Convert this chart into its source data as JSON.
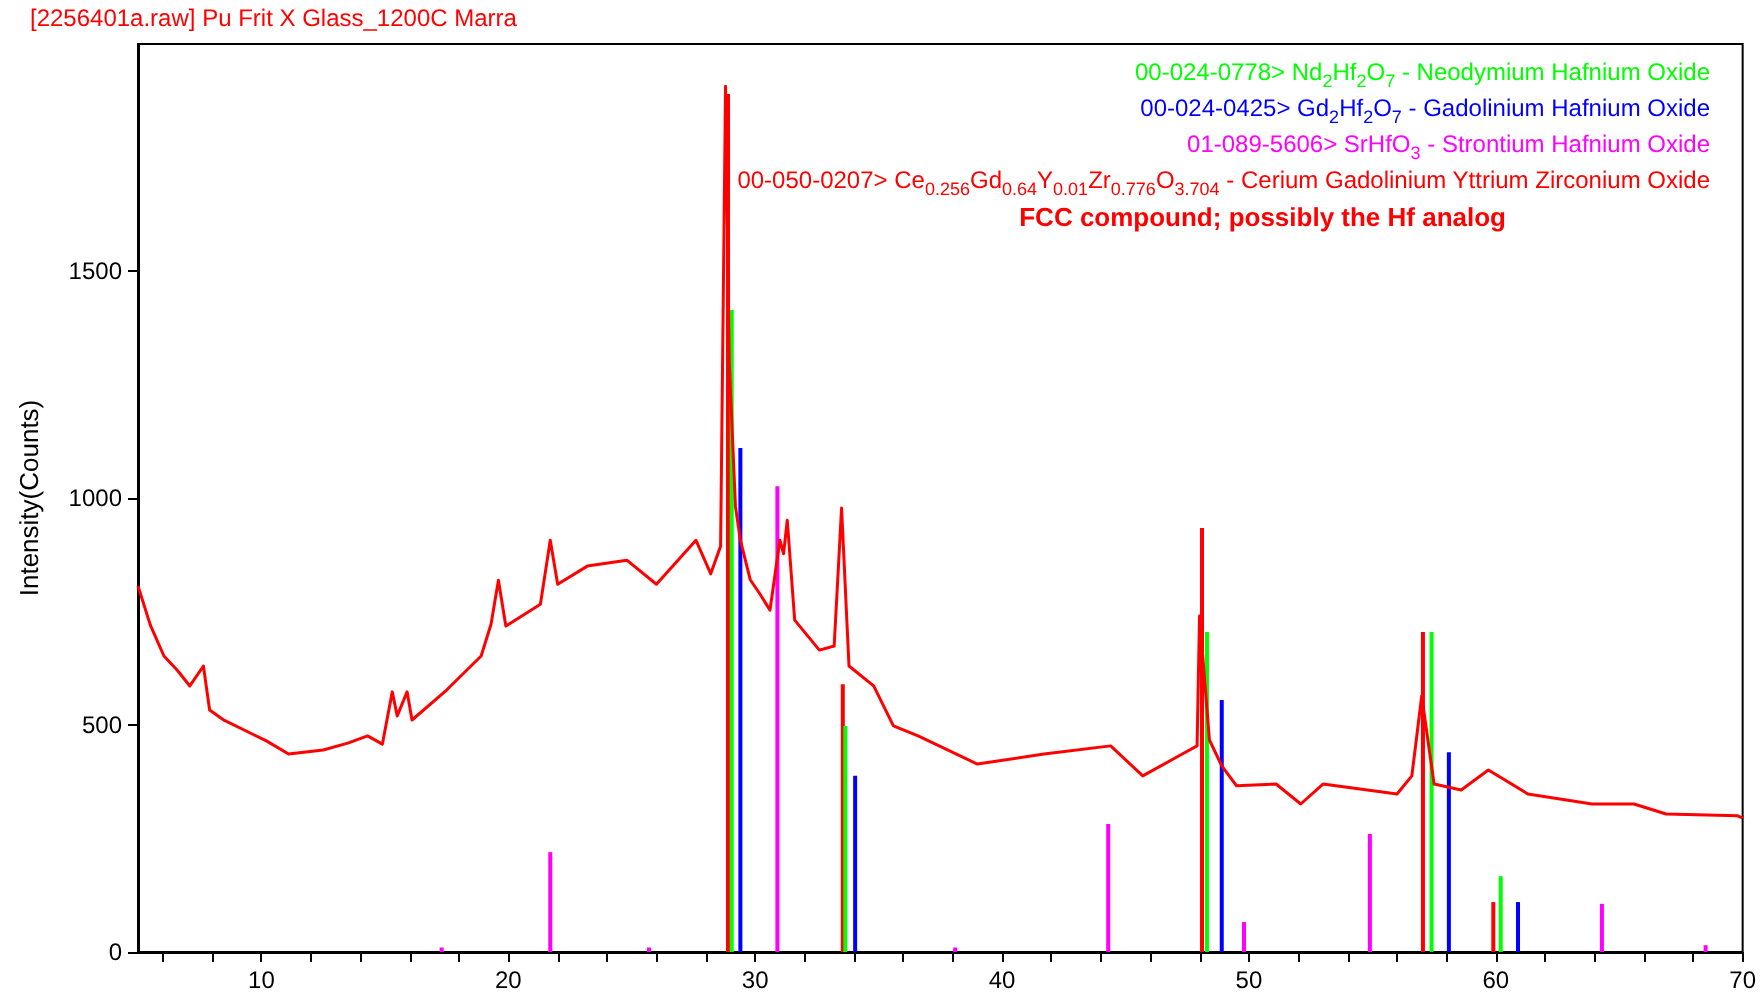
{
  "chart_data": {
    "type": "line",
    "title": "[2256401a.raw] Pu Frit X Glass_1200C Marra",
    "ylabel": "Intensity(Counts)",
    "annotations": [
      "FCC compound; possibly the Hf analog"
    ],
    "xlim": [
      5,
      70
    ],
    "ylim": [
      0,
      2000
    ],
    "xticks": [
      {
        "value": 6,
        "label": null
      },
      {
        "value": 8,
        "label": null
      },
      10,
      {
        "value": 12,
        "label": null
      },
      {
        "value": 14,
        "label": null
      },
      {
        "value": 16,
        "label": null
      },
      {
        "value": 18,
        "label": null
      },
      20,
      {
        "value": 22,
        "label": null
      },
      {
        "value": 24,
        "label": null
      },
      {
        "value": 26,
        "label": null
      },
      {
        "value": 28,
        "label": null
      },
      30,
      {
        "value": 32,
        "label": null
      },
      {
        "value": 34,
        "label": null
      },
      {
        "value": 36,
        "label": null
      },
      {
        "value": 38,
        "label": null
      },
      40,
      {
        "value": 42,
        "label": null
      },
      {
        "value": 44,
        "label": null
      },
      {
        "value": 46,
        "label": null
      },
      {
        "value": 48,
        "label": null
      },
      50,
      {
        "value": 52,
        "label": null
      },
      {
        "value": 54,
        "label": null
      },
      {
        "value": 56,
        "label": null
      },
      {
        "value": 58,
        "label": null
      },
      60,
      {
        "value": 62,
        "label": null
      },
      {
        "value": 64,
        "label": null
      },
      {
        "value": 66,
        "label": null
      },
      {
        "value": 68,
        "label": null
      },
      70
    ],
    "yticks": [
      0,
      500,
      1000,
      1500
    ],
    "grid": false,
    "marker": "none",
    "series": [
      {
        "color": "#ff0000",
        "x": [
          5,
          5.5,
          6.05,
          6.6,
          7.1,
          7.65,
          7.9,
          8.5,
          9.3,
          10.2,
          11.1,
          12.5,
          13.5,
          14.3,
          14.9,
          15.3,
          15.5,
          15.9,
          16.1,
          17.5,
          18.9,
          19.3,
          19.6,
          19.9,
          21.3,
          21.7,
          22.0,
          23.2,
          24.8,
          26.0,
          27.6,
          28.2,
          28.6,
          28.8,
          28.95,
          29.2,
          29.4,
          29.8,
          30.2,
          30.6,
          31.0,
          31.15,
          31.3,
          31.6,
          32.6,
          33.2,
          33.5,
          33.8,
          34.8,
          35.6,
          36.6,
          39.0,
          41.7,
          44.4,
          45.7,
          47.3,
          47.9,
          48.0,
          48.4,
          48.9,
          49.5,
          51.1,
          52.1,
          53.0,
          56.0,
          56.6,
          57.0,
          57.5,
          58.6,
          59.7,
          61.3,
          63.9,
          65.6,
          66.9,
          69.8,
          70
        ],
        "values": [
          806,
          720,
          652,
          620,
          586,
          630,
          533,
          510,
          489,
          465,
          436,
          445,
          460,
          476,
          458,
          573,
          520,
          573,
          511,
          577,
          652,
          722,
          819,
          718,
          766,
          907,
          810,
          850,
          863,
          810,
          907,
          833,
          894,
          1907,
          1300,
          982,
          907,
          820,
          788,
          753,
          907,
          877,
          951,
          731,
          665,
          674,
          978,
          630,
          586,
          498,
          476,
          414,
          436,
          454,
          388,
          436,
          454,
          740,
          467,
          410,
          366,
          370,
          326,
          370,
          348,
          388,
          564,
          370,
          357,
          401,
          348,
          326,
          326,
          304,
          300,
          295
        ]
      },
      {
        "type": "bar",
        "name": "00-024-0778> Nd$_{2}$Hf$_{2}$O$_{7}$ - Neodymium Hafnium Oxide",
        "color": "#00ff00",
        "x": [
          29.05,
          33.65,
          48.3,
          57.4,
          60.2
        ],
        "values": [
          1414,
          498,
          705,
          705,
          167
        ]
      },
      {
        "type": "bar",
        "name": "00-024-0425> Gd$_{2}$Hf$_{2}$O$_{7}$ - Gadolinium Hafnium Oxide",
        "color": "#0000ff",
        "x": [
          29.4,
          34.05,
          48.9,
          58.1,
          60.9
        ],
        "values": [
          1110,
          388,
          555,
          440,
          110
        ]
      },
      {
        "type": "bar",
        "name": "01-089-5606> SrHfO$_{3}$ - Strontium Hafnium Oxide",
        "color": "#ff00ff",
        "x": [
          17.3,
          21.7,
          25.7,
          30.9,
          38.1,
          44.3,
          49.8,
          54.9,
          64.3,
          68.5
        ],
        "values": [
          10,
          220,
          10,
          1026,
          10,
          282,
          66,
          260,
          106,
          15
        ]
      },
      {
        "type": "bar",
        "name": "00-050-0207> Ce$_{0.256}$Gd$_{0.64}$Y$_{0.01}$Zr$_{0.776}$O$_{3.704}$ - Cerium Gadolinium Yttrium Zirconium Oxide",
        "color": "#ff0000",
        "x": [
          28.9,
          33.55,
          48.1,
          57.05,
          59.9
        ],
        "values": [
          1890,
          590,
          934,
          705,
          110
        ]
      }
    ]
  }
}
